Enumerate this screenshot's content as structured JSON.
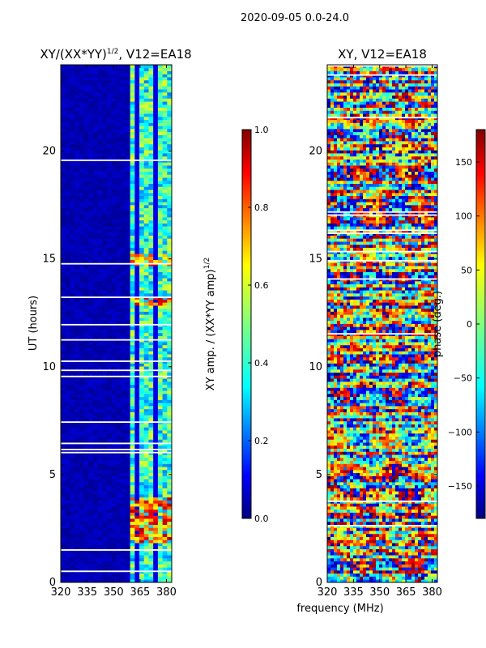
{
  "figure_title": "2020-09-05 0.0-24.0",
  "xlabel_shared": "frequency (MHz)",
  "colors": {
    "jet": [
      "#00007f",
      "#0000ff",
      "#007fff",
      "#00ffff",
      "#7fff7f",
      "#ffff00",
      "#ff7f00",
      "#ff0000",
      "#7f0000"
    ],
    "background": "#ffffff"
  },
  "chart_data": [
    {
      "type": "heatmap",
      "title_main": "XY/(XX*YY)",
      "title_sup": "1/2",
      "title_rest": ", V12=EA18",
      "ylabel": "UT (hours)",
      "x_ticks": [
        "320",
        "335",
        "350",
        "365",
        "380"
      ],
      "x_tick_values": [
        320,
        335,
        350,
        365,
        380
      ],
      "xlim": [
        320,
        383
      ],
      "ylim": [
        0,
        24
      ],
      "y_ticks": [
        "0",
        "5",
        "10",
        "15",
        "20"
      ],
      "y_tick_values": [
        0,
        5,
        10,
        15,
        20
      ],
      "colorbar": {
        "label_main": "XY amp. / (XX*YY amp)",
        "label_sup": "1/2",
        "ticks": [
          "0.0",
          "0.2",
          "0.4",
          "0.6",
          "0.8",
          "1.0"
        ],
        "tick_values": [
          0.0,
          0.2,
          0.4,
          0.6,
          0.8,
          1.0
        ],
        "range": [
          0.0,
          1.0
        ]
      }
    },
    {
      "type": "heatmap",
      "title_main": "XY, V12=EA18",
      "title_sup": "",
      "title_rest": "",
      "ylabel": "",
      "x_ticks": [
        "320",
        "335",
        "350",
        "365",
        "380"
      ],
      "x_tick_values": [
        320,
        335,
        350,
        365,
        380
      ],
      "xlim": [
        320,
        383
      ],
      "ylim": [
        0,
        24
      ],
      "y_ticks": [
        "0",
        "5",
        "10",
        "15",
        "20"
      ],
      "y_tick_values": [
        0,
        5,
        10,
        15,
        20
      ],
      "colorbar": {
        "label_main": "phase (deg.)",
        "label_sup": "",
        "ticks": [
          "−150",
          "−100",
          "−50",
          "0",
          "50",
          "100",
          "150"
        ],
        "tick_values": [
          -150,
          -100,
          -50,
          0,
          50,
          100,
          150
        ],
        "range": [
          -180,
          180
        ]
      }
    }
  ]
}
